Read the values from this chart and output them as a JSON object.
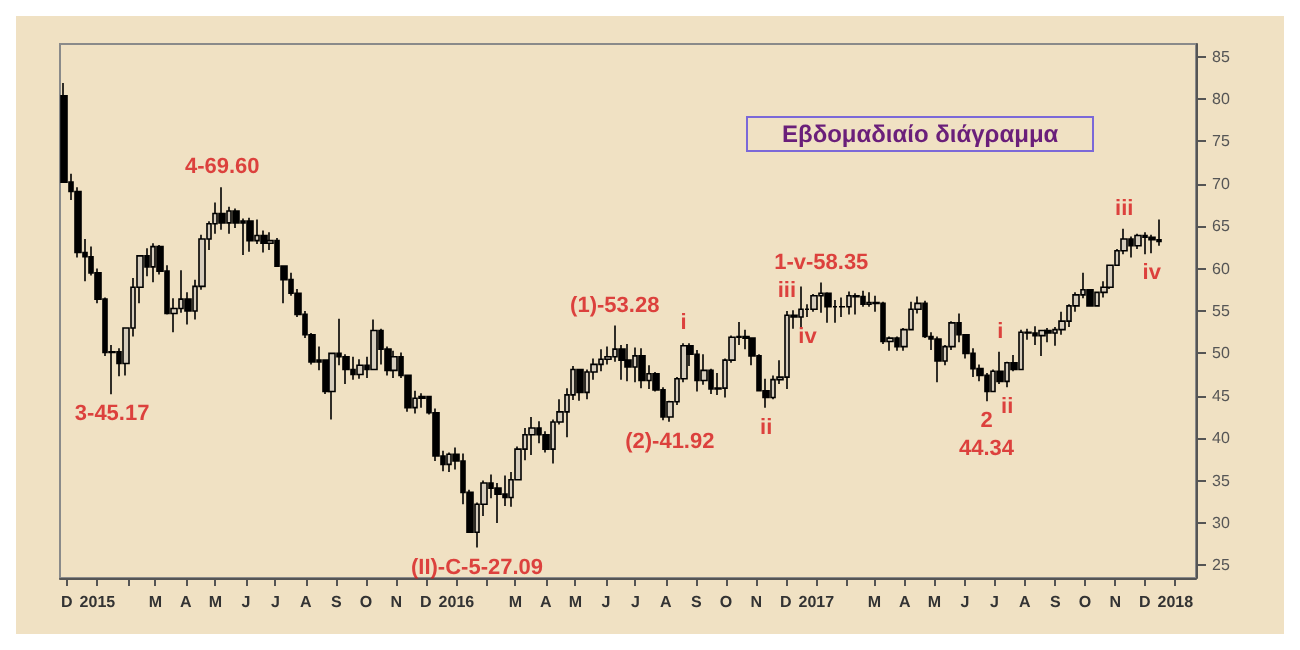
{
  "chart_data": {
    "type": "candlestick",
    "title": "Εβδομαδιαίο διάγραμμα",
    "color": "#000000",
    "x": [
      "2014-11-28",
      "2014-12-05",
      "2014-12-12",
      "2014-12-19",
      "2014-12-26",
      "2015-01-02",
      "2015-01-09",
      "2015-01-16",
      "2015-01-23",
      "2015-01-30",
      "2015-02-06",
      "2015-02-13",
      "2015-02-20",
      "2015-02-27",
      "2015-03-06",
      "2015-03-13",
      "2015-03-20",
      "2015-03-27",
      "2015-04-03",
      "2015-04-10",
      "2015-04-17",
      "2015-04-24",
      "2015-05-01",
      "2015-05-08",
      "2015-05-15",
      "2015-05-22",
      "2015-05-29",
      "2015-06-05",
      "2015-06-12",
      "2015-06-19",
      "2015-06-26",
      "2015-07-03",
      "2015-07-10",
      "2015-07-17",
      "2015-07-24",
      "2015-07-31",
      "2015-08-07",
      "2015-08-14",
      "2015-08-21",
      "2015-08-28",
      "2015-09-04",
      "2015-09-11",
      "2015-09-18",
      "2015-09-25",
      "2015-10-02",
      "2015-10-09",
      "2015-10-16",
      "2015-10-23",
      "2015-10-30",
      "2015-11-06",
      "2015-11-13",
      "2015-11-20",
      "2015-11-27",
      "2015-12-04",
      "2015-12-11",
      "2015-12-18",
      "2015-12-25",
      "2016-01-01",
      "2016-01-08",
      "2016-01-15",
      "2016-01-22",
      "2016-01-29",
      "2016-02-05",
      "2016-02-12",
      "2016-02-19",
      "2016-02-26",
      "2016-03-04",
      "2016-03-11",
      "2016-03-18",
      "2016-03-25",
      "2016-04-01",
      "2016-04-08",
      "2016-04-15",
      "2016-04-22",
      "2016-04-29",
      "2016-05-06",
      "2016-05-13",
      "2016-05-20",
      "2016-05-27",
      "2016-06-03",
      "2016-06-10",
      "2016-06-17",
      "2016-06-24",
      "2016-07-01",
      "2016-07-08",
      "2016-07-15",
      "2016-07-22",
      "2016-07-29",
      "2016-08-05",
      "2016-08-12",
      "2016-08-19",
      "2016-08-26",
      "2016-09-02",
      "2016-09-09",
      "2016-09-16",
      "2016-09-23",
      "2016-09-30",
      "2016-10-07",
      "2016-10-14",
      "2016-10-21",
      "2016-10-28",
      "2016-11-04",
      "2016-11-11",
      "2016-11-18",
      "2016-11-25",
      "2016-12-02",
      "2016-12-09",
      "2016-12-16",
      "2016-12-23",
      "2016-12-30",
      "2017-01-06",
      "2017-01-13",
      "2017-01-20",
      "2017-01-27",
      "2017-02-03",
      "2017-02-10",
      "2017-02-17",
      "2017-02-24",
      "2017-03-03",
      "2017-03-10",
      "2017-03-17",
      "2017-03-24",
      "2017-03-31",
      "2017-04-07",
      "2017-04-14",
      "2017-04-21",
      "2017-04-28",
      "2017-05-05",
      "2017-05-12",
      "2017-05-19",
      "2017-05-26",
      "2017-06-02",
      "2017-06-09",
      "2017-06-16",
      "2017-06-23",
      "2017-06-30",
      "2017-07-07",
      "2017-07-14",
      "2017-07-21",
      "2017-07-28",
      "2017-08-04",
      "2017-08-11",
      "2017-08-18",
      "2017-08-25",
      "2017-09-01",
      "2017-09-08",
      "2017-09-15",
      "2017-09-22",
      "2017-09-29",
      "2017-10-06",
      "2017-10-13",
      "2017-10-20",
      "2017-10-27",
      "2017-11-03",
      "2017-11-10",
      "2017-11-17",
      "2017-11-24",
      "2017-12-01",
      "2017-12-08",
      "2017-12-15"
    ],
    "ohlc": [
      [
        80.4,
        81.9,
        70.1,
        70.2
      ],
      [
        70.2,
        71.2,
        68.1,
        69.1
      ],
      [
        69.1,
        69.6,
        61.3,
        61.9
      ],
      [
        61.9,
        63.5,
        58.5,
        61.4
      ],
      [
        61.4,
        62.6,
        59.2,
        59.5
      ],
      [
        59.5,
        60.0,
        55.9,
        56.4
      ],
      [
        56.4,
        56.6,
        49.7,
        50.1
      ],
      [
        50.1,
        51.0,
        45.17,
        50.2
      ],
      [
        50.2,
        50.6,
        47.3,
        48.8
      ],
      [
        48.8,
        53.0,
        47.4,
        53.0
      ],
      [
        53.0,
        58.9,
        52.0,
        57.8
      ],
      [
        57.8,
        61.6,
        55.9,
        61.5
      ],
      [
        61.5,
        62.4,
        59.1,
        60.2
      ],
      [
        60.2,
        63.0,
        58.4,
        62.6
      ],
      [
        62.6,
        62.8,
        59.3,
        59.7
      ],
      [
        59.7,
        60.4,
        54.6,
        54.7
      ],
      [
        54.7,
        56.5,
        52.5,
        55.3
      ],
      [
        55.3,
        59.8,
        54.8,
        56.4
      ],
      [
        56.4,
        57.2,
        53.4,
        55.0
      ],
      [
        55.0,
        58.7,
        54.0,
        57.9
      ],
      [
        57.9,
        64.0,
        57.5,
        63.5
      ],
      [
        63.5,
        65.6,
        62.2,
        65.3
      ],
      [
        65.3,
        67.8,
        64.1,
        66.5
      ],
      [
        66.5,
        69.6,
        64.6,
        65.4
      ],
      [
        65.4,
        67.3,
        64.1,
        66.8
      ],
      [
        66.8,
        67.1,
        64.8,
        65.4
      ],
      [
        65.4,
        65.9,
        61.6,
        65.6
      ],
      [
        65.6,
        66.0,
        62.0,
        63.3
      ],
      [
        63.3,
        65.8,
        62.9,
        63.9
      ],
      [
        63.9,
        64.5,
        61.9,
        63.0
      ],
      [
        63.0,
        64.3,
        62.2,
        63.3
      ],
      [
        63.3,
        63.6,
        60.3,
        60.3
      ],
      [
        60.3,
        60.4,
        55.9,
        58.7
      ],
      [
        58.7,
        59.5,
        56.8,
        57.1
      ],
      [
        57.1,
        57.6,
        54.3,
        54.6
      ],
      [
        54.6,
        55.0,
        51.8,
        52.2
      ],
      [
        52.2,
        52.4,
        48.7,
        49.0
      ],
      [
        49.0,
        50.8,
        48.0,
        49.2
      ],
      [
        49.2,
        49.3,
        45.2,
        45.5
      ],
      [
        45.5,
        50.1,
        42.2,
        50.0
      ],
      [
        50.0,
        54.1,
        48.6,
        49.6
      ],
      [
        49.6,
        49.9,
        46.4,
        48.1
      ],
      [
        48.1,
        49.6,
        46.9,
        47.5
      ],
      [
        47.5,
        49.3,
        47.0,
        48.6
      ],
      [
        48.6,
        49.6,
        47.1,
        48.1
      ],
      [
        48.1,
        54.0,
        48.0,
        52.7
      ],
      [
        52.7,
        52.9,
        48.7,
        50.5
      ],
      [
        50.5,
        50.8,
        47.4,
        48.0
      ],
      [
        48.0,
        50.3,
        47.1,
        49.6
      ],
      [
        49.6,
        50.1,
        47.1,
        47.4
      ],
      [
        47.4,
        47.5,
        43.1,
        43.6
      ],
      [
        43.6,
        45.6,
        42.9,
        44.7
      ],
      [
        44.7,
        45.3,
        43.6,
        44.9
      ],
      [
        44.9,
        45.0,
        42.8,
        43.0
      ],
      [
        43.0,
        43.5,
        37.3,
        37.9
      ],
      [
        37.9,
        38.5,
        36.1,
        36.9
      ],
      [
        36.9,
        38.3,
        36.0,
        38.1
      ],
      [
        38.1,
        38.9,
        36.3,
        37.3
      ],
      [
        37.3,
        38.2,
        32.2,
        33.6
      ],
      [
        33.6,
        33.9,
        28.8,
        28.9
      ],
      [
        28.9,
        32.4,
        27.09,
        32.2
      ],
      [
        32.2,
        35.0,
        30.8,
        34.7
      ],
      [
        34.7,
        35.7,
        32.9,
        34.1
      ],
      [
        34.1,
        34.7,
        30.0,
        33.4
      ],
      [
        33.4,
        35.6,
        32.0,
        33.0
      ],
      [
        33.0,
        36.0,
        31.9,
        35.1
      ],
      [
        35.1,
        39.0,
        35.0,
        38.7
      ],
      [
        38.7,
        41.2,
        37.4,
        40.4
      ],
      [
        40.4,
        42.5,
        38.0,
        41.2
      ],
      [
        41.2,
        42.0,
        39.4,
        40.4
      ],
      [
        40.4,
        40.8,
        38.3,
        38.7
      ],
      [
        38.7,
        42.2,
        37.0,
        41.9
      ],
      [
        41.9,
        44.6,
        41.6,
        43.1
      ],
      [
        43.1,
        45.9,
        40.1,
        45.1
      ],
      [
        45.1,
        48.5,
        44.5,
        48.1
      ],
      [
        48.1,
        48.2,
        44.4,
        45.4
      ],
      [
        45.4,
        48.1,
        44.6,
        47.8
      ],
      [
        47.8,
        49.4,
        46.9,
        48.7
      ],
      [
        48.7,
        50.5,
        47.9,
        49.3
      ],
      [
        49.3,
        50.8,
        48.7,
        49.6
      ],
      [
        49.6,
        53.28,
        49.0,
        50.5
      ],
      [
        50.5,
        51.0,
        46.9,
        49.2
      ],
      [
        49.2,
        51.1,
        46.7,
        48.4
      ],
      [
        48.4,
        50.7,
        46.6,
        49.7
      ],
      [
        49.7,
        50.6,
        45.9,
        46.8
      ],
      [
        46.8,
        48.6,
        45.8,
        47.6
      ],
      [
        47.6,
        47.8,
        45.5,
        45.7
      ],
      [
        45.7,
        46.0,
        42.1,
        42.5
      ],
      [
        42.5,
        44.4,
        41.92,
        44.3
      ],
      [
        44.3,
        47.2,
        43.9,
        47.0
      ],
      [
        47.0,
        51.2,
        46.6,
        50.9
      ],
      [
        50.9,
        51.2,
        48.5,
        49.9
      ],
      [
        49.9,
        50.4,
        45.5,
        46.8
      ],
      [
        46.8,
        49.9,
        46.3,
        48.0
      ],
      [
        48.0,
        48.2,
        45.2,
        45.8
      ],
      [
        45.8,
        47.7,
        45.1,
        45.9
      ],
      [
        45.9,
        49.4,
        44.8,
        49.2
      ],
      [
        49.2,
        52.1,
        48.9,
        51.9
      ],
      [
        51.9,
        53.7,
        51.0,
        52.0
      ],
      [
        52.0,
        52.8,
        50.5,
        51.8
      ],
      [
        51.8,
        51.8,
        48.6,
        49.7
      ],
      [
        49.7,
        49.9,
        45.5,
        45.6
      ],
      [
        45.6,
        47.0,
        43.6,
        44.8
      ],
      [
        44.8,
        47.4,
        44.6,
        46.9
      ],
      [
        46.9,
        49.2,
        46.4,
        47.2
      ],
      [
        47.2,
        55.0,
        45.8,
        54.5
      ],
      [
        54.5,
        55.1,
        52.9,
        54.3
      ],
      [
        54.3,
        57.9,
        53.1,
        55.2
      ],
      [
        55.2,
        55.8,
        54.3,
        55.2
      ],
      [
        55.2,
        57.0,
        54.9,
        56.8
      ],
      [
        56.8,
        58.35,
        54.8,
        57.1
      ],
      [
        57.1,
        57.2,
        53.6,
        55.5
      ],
      [
        55.5,
        56.3,
        53.6,
        55.5
      ],
      [
        55.5,
        56.6,
        54.3,
        55.5
      ],
      [
        55.5,
        57.3,
        54.6,
        56.8
      ],
      [
        56.8,
        57.1,
        54.6,
        56.7
      ],
      [
        56.7,
        57.4,
        55.5,
        55.8
      ],
      [
        55.8,
        57.2,
        55.5,
        56.0
      ],
      [
        56.0,
        56.8,
        54.9,
        55.9
      ],
      [
        55.9,
        56.1,
        51.1,
        51.4
      ],
      [
        51.4,
        52.0,
        50.3,
        51.8
      ],
      [
        51.8,
        52.0,
        50.3,
        50.8
      ],
      [
        50.8,
        53.0,
        50.3,
        52.8
      ],
      [
        52.8,
        56.1,
        52.7,
        55.2
      ],
      [
        55.2,
        56.7,
        54.7,
        55.9
      ],
      [
        55.9,
        56.2,
        51.8,
        52.0
      ],
      [
        52.0,
        52.5,
        50.4,
        51.7
      ],
      [
        51.7,
        52.0,
        46.6,
        49.1
      ],
      [
        49.1,
        51.0,
        48.6,
        50.8
      ],
      [
        50.8,
        53.8,
        50.4,
        53.6
      ],
      [
        53.6,
        54.7,
        51.3,
        52.2
      ],
      [
        52.2,
        52.3,
        49.4,
        50.0
      ],
      [
        50.0,
        50.6,
        47.2,
        48.2
      ],
      [
        48.2,
        48.7,
        46.7,
        47.4
      ],
      [
        47.4,
        47.7,
        44.34,
        45.5
      ],
      [
        45.5,
        48.1,
        45.4,
        47.9
      ],
      [
        47.9,
        50.2,
        46.4,
        46.7
      ],
      [
        46.7,
        49.0,
        46.0,
        48.9
      ],
      [
        48.9,
        49.8,
        47.9,
        48.1
      ],
      [
        48.1,
        52.8,
        48.0,
        52.5
      ],
      [
        52.5,
        52.9,
        51.6,
        52.4
      ],
      [
        52.4,
        53.2,
        51.0,
        52.1
      ],
      [
        52.1,
        52.8,
        49.7,
        52.7
      ],
      [
        52.7,
        53.0,
        51.3,
        52.4
      ],
      [
        52.4,
        53.1,
        50.9,
        52.8
      ],
      [
        52.8,
        54.9,
        52.2,
        53.8
      ],
      [
        53.8,
        55.8,
        53.1,
        55.6
      ],
      [
        55.6,
        57.2,
        54.9,
        56.9
      ],
      [
        56.9,
        59.5,
        56.5,
        57.5
      ],
      [
        57.5,
        57.6,
        55.5,
        55.6
      ],
      [
        55.6,
        57.3,
        55.5,
        57.2
      ],
      [
        57.2,
        58.5,
        56.6,
        57.8
      ],
      [
        57.8,
        60.5,
        57.6,
        60.4
      ],
      [
        60.4,
        62.3,
        60.3,
        62.1
      ],
      [
        62.1,
        64.7,
        61.7,
        63.5
      ],
      [
        63.5,
        63.8,
        61.3,
        62.7
      ],
      [
        62.7,
        64.1,
        62.3,
        63.9
      ],
      [
        63.9,
        64.3,
        61.7,
        63.7
      ],
      [
        63.7,
        64.0,
        61.8,
        63.4
      ],
      [
        63.4,
        65.8,
        62.7,
        63.2
      ]
    ],
    "xlim": [
      "2014-11-24",
      "2018-01-22"
    ],
    "xticks": [
      {
        "value": "2014-12-01",
        "label": "D"
      },
      {
        "value": "2015-01-01",
        "label": "2015"
      },
      {
        "value": "2015-02-01",
        "label": null
      },
      {
        "value": "2015-03-01",
        "label": "M"
      },
      {
        "value": "2015-04-01",
        "label": "A"
      },
      {
        "value": "2015-05-01",
        "label": "M"
      },
      {
        "value": "2015-06-01",
        "label": "J"
      },
      {
        "value": "2015-07-01",
        "label": "J"
      },
      {
        "value": "2015-08-01",
        "label": "A"
      },
      {
        "value": "2015-09-01",
        "label": "S"
      },
      {
        "value": "2015-10-01",
        "label": "O"
      },
      {
        "value": "2015-11-01",
        "label": "N"
      },
      {
        "value": "2015-12-01",
        "label": "D"
      },
      {
        "value": "2016-01-01",
        "label": "2016"
      },
      {
        "value": "2016-02-01",
        "label": null
      },
      {
        "value": "2016-03-01",
        "label": "M"
      },
      {
        "value": "2016-04-01",
        "label": "A"
      },
      {
        "value": "2016-05-01",
        "label": "M"
      },
      {
        "value": "2016-06-01",
        "label": "J"
      },
      {
        "value": "2016-07-01",
        "label": "J"
      },
      {
        "value": "2016-08-01",
        "label": "A"
      },
      {
        "value": "2016-09-01",
        "label": "S"
      },
      {
        "value": "2016-10-01",
        "label": "O"
      },
      {
        "value": "2016-11-01",
        "label": "N"
      },
      {
        "value": "2016-12-01",
        "label": "D"
      },
      {
        "value": "2017-01-01",
        "label": "2017"
      },
      {
        "value": "2017-02-01",
        "label": null
      },
      {
        "value": "2017-03-01",
        "label": "M"
      },
      {
        "value": "2017-04-01",
        "label": "A"
      },
      {
        "value": "2017-05-01",
        "label": "M"
      },
      {
        "value": "2017-06-01",
        "label": "J"
      },
      {
        "value": "2017-07-01",
        "label": "J"
      },
      {
        "value": "2017-08-01",
        "label": "A"
      },
      {
        "value": "2017-09-01",
        "label": "S"
      },
      {
        "value": "2017-10-01",
        "label": "O"
      },
      {
        "value": "2017-11-01",
        "label": "N"
      },
      {
        "value": "2017-12-01",
        "label": "D"
      },
      {
        "value": "2018-01-01",
        "label": "2018"
      }
    ],
    "ylim": [
      23.5,
      86.5
    ],
    "yticks": [
      25,
      30,
      35,
      40,
      45,
      50,
      55,
      60,
      65,
      70,
      75,
      80,
      85
    ],
    "grid": false,
    "annotations": [
      {
        "text": "3-45.17",
        "x": "2015-01-16",
        "y": 45.17
      },
      {
        "text": "4-69.60",
        "x": "2015-05-08",
        "y": 69.6
      },
      {
        "text": "(II)-C-5-27.09",
        "x": "2016-01-22",
        "y": 27.09
      },
      {
        "text": "(1)-53.28",
        "x": "2016-06-10",
        "y": 53.28
      },
      {
        "text": "(2)-41.92",
        "x": "2016-08-05",
        "y": 41.92
      },
      {
        "text": "i",
        "x": "2016-08-19",
        "y": 51.2
      },
      {
        "text": "ii",
        "x": "2016-11-11",
        "y": 43.6
      },
      {
        "text": "iii",
        "x": "2016-12-02",
        "y": 55.0
      },
      {
        "text": "iv",
        "x": "2016-12-23",
        "y": 54.3
      },
      {
        "text": "1-v-58.35",
        "x": "2017-01-06",
        "y": 58.35
      },
      {
        "text": "2\n44.34",
        "x": "2017-06-23",
        "y": 44.34
      },
      {
        "text": "i",
        "x": "2017-07-07",
        "y": 50.2
      },
      {
        "text": "ii",
        "x": "2017-07-14",
        "y": 46.0
      },
      {
        "text": "iii",
        "x": "2017-11-10",
        "y": 64.7
      },
      {
        "text": "iv",
        "x": "2017-12-08",
        "y": 61.8
      }
    ]
  }
}
